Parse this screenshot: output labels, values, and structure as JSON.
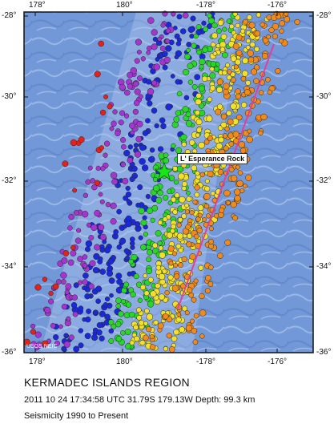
{
  "map": {
    "region_title": "KERMADEC ISLANDS REGION",
    "event_line": "2011 10 24 17:34:58 UTC 31.79S 179.13W Depth: 99.3 km",
    "seismicity_range": "Seismicity 1990 to Present",
    "place_label": "L' Esperance Rock",
    "credit": "USGS NEIC",
    "longitude_ticks": [
      "178°",
      "180°",
      "-178°",
      "-176°"
    ],
    "latitude_ticks": [
      "-28°",
      "-30°",
      "-32°",
      "-34°",
      "-36°"
    ],
    "colors": {
      "ocean": "#6f95d6",
      "trench_line": "#e0409a",
      "depth_shallow": "#e3231b",
      "depth_mid1": "#a436cf",
      "depth_mid2": "#1b2ad6",
      "depth_mid3": "#2bd62b",
      "depth_mid4": "#f2e12a",
      "depth_deep": "#f08a1c",
      "epicenter_star": "#19e619"
    }
  }
}
